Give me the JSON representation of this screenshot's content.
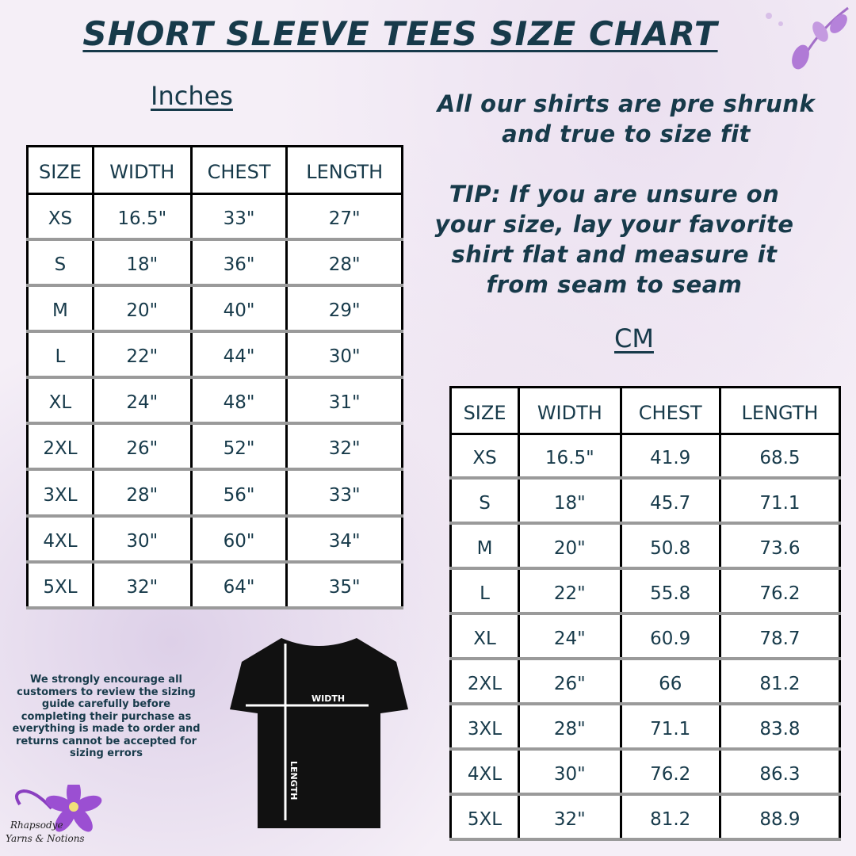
{
  "title": "SHORT SLEEVE TEES SIZE CHART",
  "inches": {
    "label": "Inches",
    "headers": [
      "SIZE",
      "WIDTH",
      "CHEST",
      "LENGTH"
    ],
    "rows": [
      [
        "XS",
        "16.5\"",
        "33\"",
        "27\""
      ],
      [
        "S",
        "18\"",
        "36\"",
        "28\""
      ],
      [
        "M",
        "20\"",
        "40\"",
        "29\""
      ],
      [
        "L",
        "22\"",
        "44\"",
        "30\""
      ],
      [
        "XL",
        "24\"",
        "48\"",
        "31\""
      ],
      [
        "2XL",
        "26\"",
        "52\"",
        "32\""
      ],
      [
        "3XL",
        "28\"",
        "56\"",
        "33\""
      ],
      [
        "4XL",
        "30\"",
        "60\"",
        "34\""
      ],
      [
        "5XL",
        "32\"",
        "64\"",
        "35\""
      ]
    ]
  },
  "cm": {
    "label": "CM",
    "headers": [
      "SIZE",
      "WIDTH",
      "CHEST",
      "LENGTH"
    ],
    "rows": [
      [
        "XS",
        "16.5\"",
        "41.9",
        "68.5"
      ],
      [
        "S",
        "18\"",
        "45.7",
        "71.1"
      ],
      [
        "M",
        "20\"",
        "50.8",
        "73.6"
      ],
      [
        "L",
        "22\"",
        "55.8",
        "76.2"
      ],
      [
        "XL",
        "24\"",
        "60.9",
        "78.7"
      ],
      [
        "2XL",
        "26\"",
        "66",
        "81.2"
      ],
      [
        "3XL",
        "28\"",
        "71.1",
        "83.8"
      ],
      [
        "4XL",
        "30\"",
        "76.2",
        "86.3"
      ],
      [
        "5XL",
        "32\"",
        "81.2",
        "88.9"
      ]
    ]
  },
  "note1": "All our shirts are pre shrunk and true to size fit",
  "note2": "TIP: If you are unsure on your size, lay your favorite shirt flat and measure it from seam to seam",
  "disclaimer": "We strongly encourage all customers to review the sizing guide carefully before completing their purchase as everything is made to order and returns cannot be accepted for sizing errors",
  "shirt": {
    "width_label": "WIDTH",
    "length_label": "LENGTH"
  },
  "logo": {
    "line1": "Rhapsodye",
    "line2": "Yarns & Notions"
  },
  "colors": {
    "text": "#173a4a",
    "accent": "#9b59c9"
  }
}
